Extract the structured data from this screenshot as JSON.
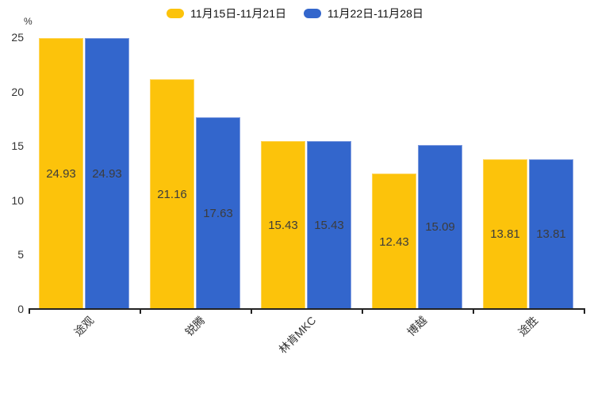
{
  "chart_data": {
    "type": "bar",
    "title": "",
    "categories": [
      "途观",
      "锐腾",
      "林肯MKC",
      "博越",
      "途胜"
    ],
    "series": [
      {
        "name": "11月15日-11月21日",
        "color": "#FCC30B",
        "border_color": "#FFD65C",
        "values": [
          24.93,
          21.16,
          15.43,
          12.43,
          13.81
        ]
      },
      {
        "name": "11月22日-11月28日",
        "color": "#3366CC",
        "border_color": "#7F9CE0",
        "values": [
          24.93,
          17.63,
          15.43,
          15.09,
          13.81
        ]
      }
    ],
    "xlabel": "",
    "ylabel": "%",
    "ylim": [
      0,
      25
    ],
    "yticks": [
      0,
      5,
      10,
      15,
      20,
      25
    ],
    "grid": false,
    "legend_position": "top",
    "value_labels": "inside-center, 2 decimals",
    "x_label_rotation": 45
  }
}
